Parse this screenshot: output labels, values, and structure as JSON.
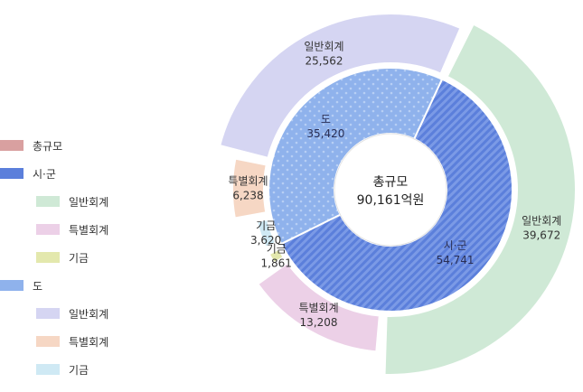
{
  "chart_data": {
    "type": "pie",
    "center": {
      "title": "총규모",
      "value": "90,161억원"
    },
    "inner_ring": [
      {
        "name": "도",
        "value": 35420,
        "display": "35,420",
        "color": "#8fb2ec"
      },
      {
        "name": "시·군",
        "value": 54741,
        "display": "54,741",
        "color": "#5b7fdb"
      }
    ],
    "outer_ring": [
      {
        "group": "시·군",
        "name": "일반회계",
        "value": 39672,
        "display": "39,672",
        "color": "#cfe9d6"
      },
      {
        "group": "시·군",
        "name": "특별회계",
        "value": 13208,
        "display": "13,208",
        "color": "#ecd0e7"
      },
      {
        "group": "시·군",
        "name": "기금",
        "value": 1861,
        "display": "1,861",
        "color": "#e3e8ad"
      },
      {
        "group": "도",
        "name": "기금",
        "value": 3620,
        "display": "3,620",
        "color": "#cfe9f4"
      },
      {
        "group": "도",
        "name": "특별회계",
        "value": 6238,
        "display": "6,238",
        "color": "#f6d7c4"
      },
      {
        "group": "도",
        "name": "일반회계",
        "value": 25562,
        "display": "25,562",
        "color": "#d5d5f2"
      }
    ]
  },
  "legend": {
    "items": [
      {
        "label": "총규모",
        "color": "#d9a0a0",
        "indent": false
      },
      {
        "label": "시·군",
        "color": "#5b7fdb",
        "indent": false
      },
      {
        "label": "일반회계",
        "color": "#cfe9d6",
        "indent": true
      },
      {
        "label": "특별회계",
        "color": "#ecd0e7",
        "indent": true
      },
      {
        "label": "기금",
        "color": "#e3e8ad",
        "indent": true
      },
      {
        "label": "도",
        "color": "#8fb2ec",
        "indent": false
      },
      {
        "label": "일반회계",
        "color": "#d5d5f2",
        "indent": true
      },
      {
        "label": "특별회계",
        "color": "#f6d7c4",
        "indent": true
      },
      {
        "label": "기금",
        "color": "#cfe9f4",
        "indent": true
      }
    ]
  }
}
